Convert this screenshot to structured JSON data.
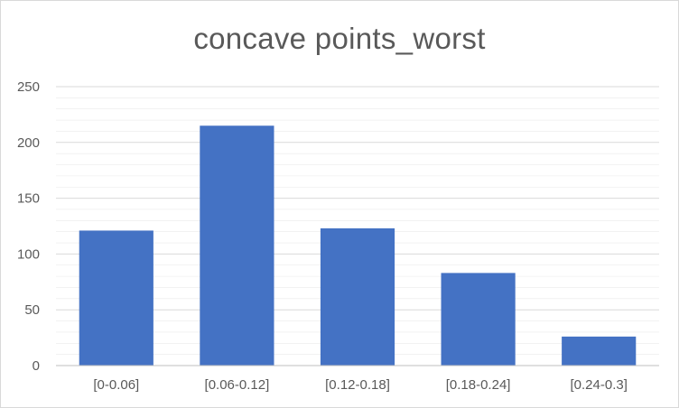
{
  "chart_data": {
    "type": "bar",
    "title": "concave points_worst",
    "categories": [
      "[0-0.06]",
      "[0.06-0.12]",
      "[0.12-0.18]",
      "[0.18-0.24]",
      "[0.24-0.3]"
    ],
    "values": [
      121,
      215,
      123,
      83,
      26
    ],
    "ylim": [
      0,
      250
    ],
    "yticks": [
      "0",
      "50",
      "100",
      "150",
      "200",
      "250"
    ],
    "grid": true,
    "bar_color": "#4472C4",
    "grid_color": "#d9d9d9",
    "axis_color": "#bfbfbf"
  }
}
